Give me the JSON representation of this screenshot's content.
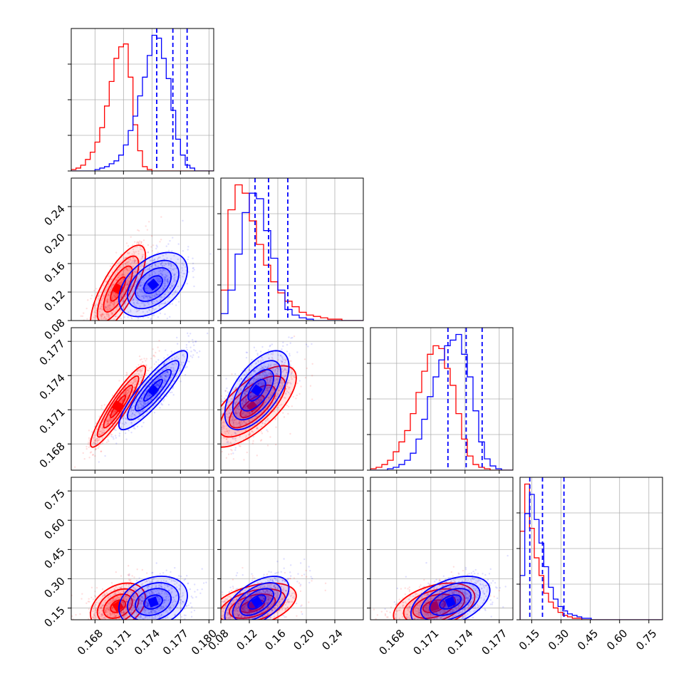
{
  "chart_data": {
    "type": "corner",
    "grid": true,
    "series": [
      {
        "color": "#ff0000"
      },
      {
        "color": "#0000ff"
      }
    ],
    "quantile_color": "#0000ff",
    "params": [
      {
        "range": [
          0.1655,
          0.1805
        ],
        "ticks": [
          0.168,
          0.171,
          0.174,
          0.177,
          0.18
        ],
        "tick_labels": [
          "0.168",
          "0.171",
          "0.174",
          "0.177",
          "0.180"
        ]
      },
      {
        "range": [
          0.08,
          0.28
        ],
        "ticks": [
          0.08,
          0.12,
          0.16,
          0.2,
          0.24
        ],
        "tick_labels": [
          "0.08",
          "0.12",
          "0.16",
          "0.20",
          "0.24"
        ]
      },
      {
        "range": [
          0.1657,
          0.1782
        ],
        "ticks": [
          0.168,
          0.171,
          0.174,
          0.177
        ],
        "tick_labels": [
          "0.168",
          "0.171",
          "0.174",
          "0.177"
        ]
      },
      {
        "range": [
          0.09,
          0.82
        ],
        "ticks": [
          0.15,
          0.3,
          0.45,
          0.6,
          0.75
        ],
        "tick_labels": [
          "0.15",
          "0.30",
          "0.45",
          "0.60",
          "0.75"
        ]
      }
    ],
    "histograms": [
      {
        "red": [
          1,
          2,
          4,
          8,
          13,
          20,
          30,
          45,
          62,
          78,
          86,
          88,
          65,
          32,
          14,
          3,
          1,
          0,
          0,
          0,
          0,
          0,
          0,
          0,
          0,
          0,
          0,
          0,
          0,
          0
        ],
        "blue": [
          0,
          0,
          0,
          0,
          0,
          1,
          2,
          3,
          5,
          7,
          11,
          18,
          28,
          38,
          52,
          65,
          80,
          94,
          92,
          78,
          64,
          42,
          22,
          11,
          4,
          2,
          0,
          0,
          0,
          0
        ],
        "quantiles": [
          0.1745,
          0.1762,
          0.1777
        ]
      },
      {
        "red": [
          22,
          80,
          98,
          92,
          72,
          55,
          40,
          28,
          20,
          14,
          10,
          6,
          4,
          3,
          2,
          1,
          1,
          0,
          0,
          0
        ],
        "blue": [
          5,
          22,
          48,
          78,
          92,
          88,
          65,
          45,
          22,
          8,
          4,
          2,
          1,
          0,
          0,
          0,
          0,
          0,
          0,
          0
        ],
        "quantiles": [
          0.128,
          0.147,
          0.174
        ]
      },
      {
        "red": [
          1,
          2,
          4,
          7,
          13,
          20,
          28,
          40,
          55,
          70,
          82,
          88,
          86,
          72,
          60,
          40,
          22,
          10,
          4,
          2,
          1,
          0,
          0,
          0,
          0
        ],
        "blue": [
          0,
          0,
          0,
          1,
          2,
          4,
          7,
          12,
          22,
          36,
          52,
          66,
          78,
          88,
          92,
          96,
          82,
          66,
          42,
          20,
          8,
          3,
          1,
          0,
          0
        ],
        "quantiles": [
          0.1725,
          0.1741,
          0.1755
        ]
      },
      {
        "red": [
          60,
          92,
          62,
          42,
          30,
          18,
          12,
          8,
          5,
          3,
          2,
          1,
          1,
          0,
          0,
          0,
          0,
          0,
          0,
          0,
          0,
          0,
          0,
          0,
          0,
          0,
          0,
          0,
          0,
          0
        ],
        "blue": [
          30,
          72,
          85,
          68,
          52,
          36,
          22,
          14,
          9,
          6,
          4,
          3,
          2,
          1,
          1,
          0,
          0,
          0,
          0,
          0,
          0,
          0,
          0,
          0,
          0,
          0,
          0,
          0,
          0,
          0
        ],
        "quantiles": [
          0.14,
          0.205,
          0.315
        ]
      }
    ],
    "correlation": [
      [
        null,
        null,
        null,
        null
      ],
      [
        {
          "red": 0.75,
          "blue": 0.45
        },
        null,
        null,
        null
      ],
      [
        {
          "red": 0.92,
          "blue": 0.88
        },
        {
          "red": 0.7,
          "blue": 0.6
        },
        null,
        null
      ],
      [
        {
          "red": 0.35,
          "blue": 0.25
        },
        {
          "red": 0.45,
          "blue": 0.55
        },
        {
          "red": 0.4,
          "blue": 0.45
        },
        null
      ]
    ]
  }
}
